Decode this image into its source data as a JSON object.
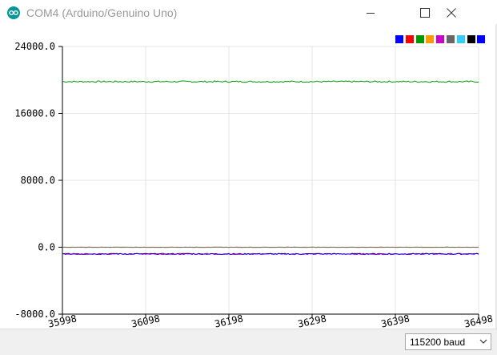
{
  "window": {
    "title": "COM4 (Arduino/Genuino Uno)"
  },
  "legend": {
    "colors": [
      "#0000ff",
      "#ff0000",
      "#009900",
      "#ff9900",
      "#cc00cc",
      "#666666",
      "#33ccff",
      "#000000",
      "#0000ff"
    ]
  },
  "baud": {
    "selected": "115200 baud"
  },
  "chart_data": {
    "type": "line",
    "xlim": [
      35998,
      36498
    ],
    "ylim": [
      -8000,
      24000
    ],
    "x_ticks": [
      "35998",
      "36098",
      "36198",
      "36298",
      "36398",
      "36498"
    ],
    "y_ticks": [
      "24000.0",
      "16000.0",
      "8000.0",
      "0.0",
      "-8000.0"
    ],
    "y_tick_values": [
      24000,
      16000,
      8000,
      0,
      -8000
    ],
    "grid": true,
    "legend_placement": "top-right",
    "series": [
      {
        "color": "#009900",
        "level": 19800,
        "noise": 90
      },
      {
        "color": "#ff0000",
        "level": -800,
        "noise": 70
      },
      {
        "color": "#0000ff",
        "level": -800,
        "noise": 70
      },
      {
        "color": "#ff9900",
        "level": 0,
        "noise": 20
      },
      {
        "color": "#666666",
        "level": 0,
        "noise": 15
      }
    ]
  }
}
